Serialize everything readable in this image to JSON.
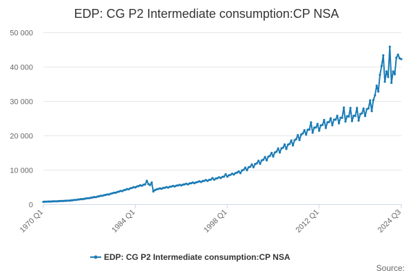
{
  "chart_data": {
    "type": "line",
    "title": "EDP: CG P2 Intermediate consumption:CP NSA",
    "xlabel": "",
    "ylabel": "",
    "x_tick_labels": [
      "1970 Q1",
      "1984 Q1",
      "1998 Q1",
      "2012 Q1",
      "2024 Q3"
    ],
    "y_tick_labels": [
      "0",
      "10 000",
      "20 000",
      "30 000",
      "40 000",
      "50 000"
    ],
    "ylim": [
      0,
      50000
    ],
    "grid": "horizontal",
    "legend_position": "bottom",
    "color": "#1a7bb5",
    "series": [
      {
        "name": "EDP: CG P2 Intermediate consumption:CP NSA",
        "anchors": [
          [
            "1970 Q1",
            700
          ],
          [
            "1972 Q1",
            850
          ],
          [
            "1974 Q1",
            1050
          ],
          [
            "1976 Q1",
            1500
          ],
          [
            "1978 Q1",
            2100
          ],
          [
            "1980 Q1",
            2900
          ],
          [
            "1982 Q1",
            3900
          ],
          [
            "1984 Q1",
            5000
          ],
          [
            "1985 Q1",
            5500
          ],
          [
            "1986 Q1",
            6000
          ],
          [
            "1987 Q1",
            4200
          ],
          [
            "1988 Q1",
            4600
          ],
          [
            "1990 Q1",
            5300
          ],
          [
            "1992 Q1",
            5900
          ],
          [
            "1994 Q1",
            6600
          ],
          [
            "1996 Q1",
            7300
          ],
          [
            "1997 Q1",
            7800
          ],
          [
            "1998 Q1",
            8200
          ],
          [
            "2000 Q1",
            9500
          ],
          [
            "2002 Q1",
            11300
          ],
          [
            "2004 Q1",
            13400
          ],
          [
            "2006 Q1",
            15800
          ],
          [
            "2008 Q1",
            18000
          ],
          [
            "2010 Q1",
            21300
          ],
          [
            "2012 Q1",
            22500
          ],
          [
            "2014 Q1",
            24200
          ],
          [
            "2016 Q1",
            25300
          ],
          [
            "2018 Q1",
            25600
          ],
          [
            "2019 Q1",
            27000
          ],
          [
            "2020 Q1",
            28500
          ],
          [
            "2021 Q1",
            34500
          ],
          [
            "2021 Q3",
            40000
          ],
          [
            "2022 Q1",
            37500
          ],
          [
            "2022 Q3",
            39000
          ],
          [
            "2023 Q1",
            37000
          ],
          [
            "2023 Q3",
            39500
          ],
          [
            "2024 Q1",
            42000
          ],
          [
            "2024 Q3",
            42000
          ]
        ],
        "peaks": [
          [
            "1985 Q4",
            6800
          ],
          [
            "1986 Q3",
            6300
          ],
          [
            "1995 Q4",
            7600
          ],
          [
            "1997 Q4",
            8700
          ],
          [
            "2009 Q4",
            21500
          ],
          [
            "2010 Q4",
            23800
          ],
          [
            "2012 Q4",
            24500
          ],
          [
            "2013 Q4",
            25000
          ],
          [
            "2015 Q4",
            28100
          ],
          [
            "2016 Q4",
            28000
          ],
          [
            "2017 Q4",
            28000
          ],
          [
            "2019 Q4",
            30200
          ],
          [
            "2021 Q4",
            43300
          ],
          [
            "2022 Q4",
            45800
          ],
          [
            "2024 Q1",
            43500
          ]
        ],
        "dips": [
          [
            "1986 Q4",
            3700
          ],
          [
            "2022 Q3",
            37000
          ],
          [
            "2023 Q1",
            35300
          ],
          [
            "2023 Q3",
            37800
          ]
        ]
      }
    ]
  },
  "legend": {
    "label": "EDP: CG P2 Intermediate consumption:CP NSA"
  },
  "source": {
    "label": "Source:"
  }
}
